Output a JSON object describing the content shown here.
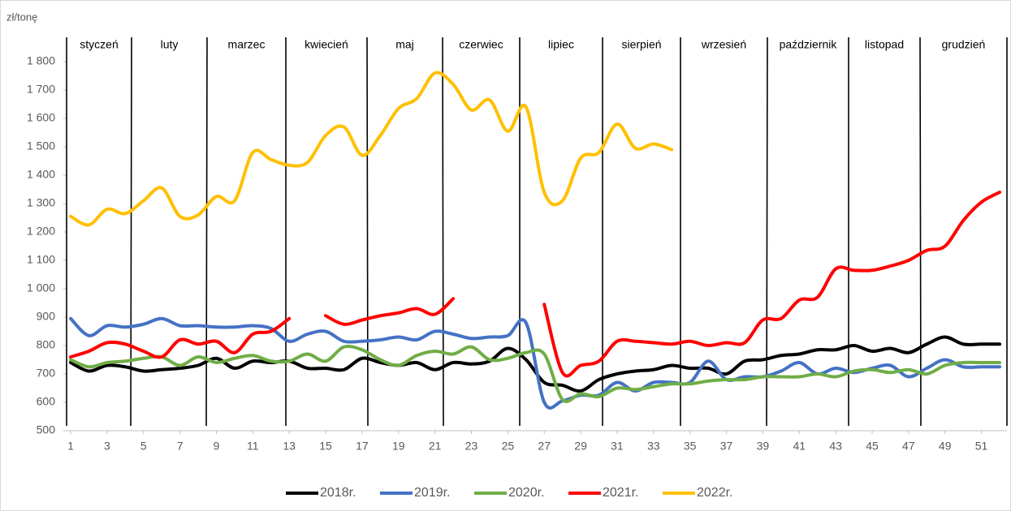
{
  "chart_data": {
    "type": "line",
    "y_label": "zł/tonę",
    "months": [
      "styczeń",
      "luty",
      "marzec",
      "kwiecień",
      "maj",
      "czerwiec",
      "lipiec",
      "sierpień",
      "wrzesień",
      "październik",
      "listopad",
      "grudzień"
    ],
    "x": [
      1,
      2,
      3,
      4,
      5,
      6,
      7,
      8,
      9,
      10,
      11,
      12,
      13,
      14,
      15,
      16,
      17,
      18,
      19,
      20,
      21,
      22,
      23,
      24,
      25,
      26,
      27,
      28,
      29,
      30,
      31,
      32,
      33,
      34,
      35,
      36,
      37,
      38,
      39,
      40,
      41,
      42,
      43,
      44,
      45,
      46,
      47,
      48,
      49,
      50,
      51,
      52
    ],
    "xlim": [
      1,
      52
    ],
    "xticks": [
      1,
      3,
      5,
      7,
      9,
      11,
      13,
      15,
      17,
      19,
      21,
      23,
      25,
      27,
      29,
      31,
      33,
      35,
      37,
      39,
      41,
      43,
      45,
      47,
      49,
      51
    ],
    "ylim": [
      500,
      1800
    ],
    "yticks": [
      500,
      600,
      700,
      800,
      900,
      {
        "value": 1000,
        "label": "1 000"
      },
      {
        "value": 1100,
        "label": "1 100"
      },
      {
        "value": 1200,
        "label": "1 200"
      },
      {
        "value": 1300,
        "label": "1 300"
      },
      {
        "value": 1400,
        "label": "1 400"
      },
      {
        "value": 1500,
        "label": "1 500"
      },
      {
        "value": 1600,
        "label": "1 600"
      },
      {
        "value": 1700,
        "label": "1 700"
      },
      {
        "value": 1800,
        "label": "1 800"
      }
    ],
    "series": [
      {
        "name": "2018r.",
        "color": "#000000",
        "values": [
          740,
          710,
          730,
          725,
          710,
          715,
          720,
          730,
          755,
          720,
          745,
          740,
          745,
          720,
          720,
          715,
          755,
          740,
          730,
          740,
          715,
          740,
          735,
          745,
          790,
          750,
          670,
          660,
          640,
          680,
          700,
          710,
          715,
          730,
          720,
          720,
          700,
          745,
          750,
          765,
          770,
          785,
          785,
          800,
          780,
          790,
          775,
          805,
          830,
          805,
          805,
          805
        ]
      },
      {
        "name": "2019r.",
        "color": "#4472c4",
        "values": [
          895,
          835,
          870,
          865,
          875,
          895,
          870,
          870,
          865,
          865,
          870,
          860,
          815,
          840,
          850,
          815,
          815,
          820,
          830,
          820,
          850,
          840,
          825,
          830,
          835,
          880,
          600,
          605,
          625,
          625,
          670,
          640,
          670,
          670,
          670,
          745,
          680,
          690,
          690,
          710,
          740,
          700,
          720,
          705,
          720,
          730,
          690,
          720,
          750,
          725,
          725,
          725
        ]
      },
      {
        "name": "2020r.",
        "color": "#70ad47",
        "values": [
          750,
          725,
          740,
          745,
          755,
          760,
          730,
          760,
          740,
          755,
          765,
          745,
          745,
          770,
          745,
          795,
          785,
          750,
          730,
          765,
          780,
          770,
          795,
          750,
          755,
          775,
          770,
          610,
          630,
          620,
          650,
          645,
          655,
          665,
          665,
          675,
          680,
          680,
          690,
          690,
          690,
          700,
          690,
          710,
          715,
          705,
          715,
          700,
          730,
          740,
          740,
          740
        ]
      },
      {
        "name": "2021r.",
        "color": "#ff0000",
        "values": [
          760,
          780,
          810,
          805,
          780,
          760,
          820,
          805,
          815,
          775,
          840,
          850,
          895,
          null,
          905,
          875,
          890,
          905,
          915,
          930,
          910,
          965,
          null,
          null,
          null,
          null,
          945,
          705,
          730,
          745,
          815,
          815,
          810,
          805,
          815,
          800,
          810,
          810,
          890,
          895,
          960,
          970,
          1070,
          1065,
          1065,
          1080,
          1100,
          1135,
          1150,
          1240,
          1305,
          1340
        ]
      },
      {
        "name": "2022r.",
        "color": "#ffc000",
        "values": [
          1255,
          1225,
          1280,
          1265,
          1310,
          1355,
          1255,
          1260,
          1325,
          1310,
          1480,
          1455,
          1435,
          1445,
          1540,
          1570,
          1470,
          1540,
          1635,
          1670,
          1760,
          1720,
          1630,
          1665,
          1555,
          1640,
          1340,
          1310,
          1460,
          1480,
          1580,
          1495,
          1510,
          1490,
          null,
          null,
          null,
          null,
          null,
          null,
          null,
          null,
          null,
          null,
          null,
          null,
          null,
          null,
          null,
          null,
          null,
          null
        ]
      }
    ]
  }
}
